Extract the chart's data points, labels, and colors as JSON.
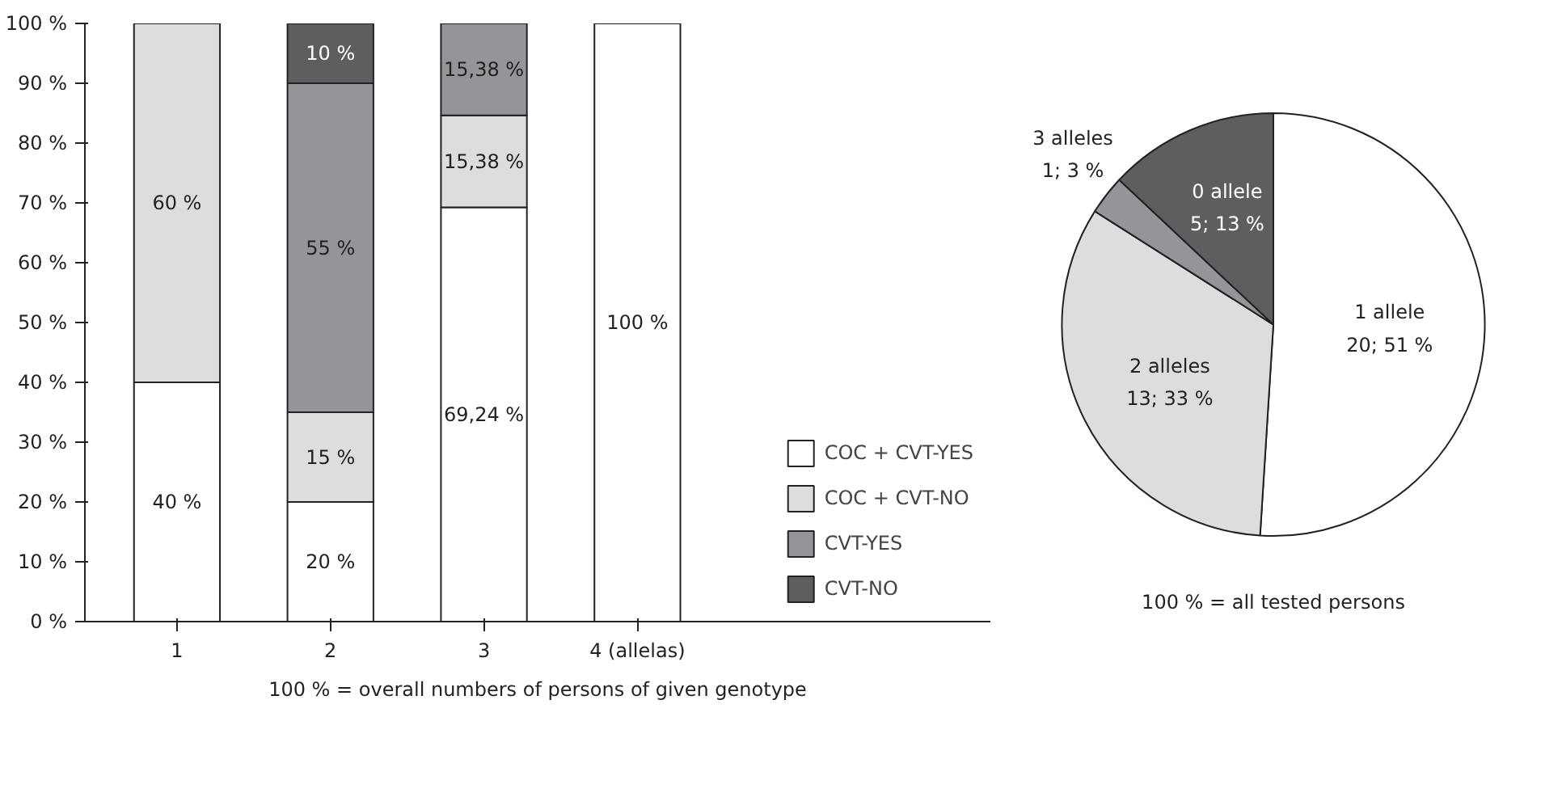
{
  "chart_data": [
    {
      "type": "bar",
      "stacked": true,
      "categories": [
        "1",
        "2",
        "3",
        "4 (allelas)"
      ],
      "series": [
        {
          "name": "COC + CVT-YES",
          "color": "#ffffff",
          "values": [
            40,
            20,
            69.24,
            100
          ],
          "value_labels": [
            "40 %",
            "20 %",
            "69,24 %",
            "100 %"
          ]
        },
        {
          "name": "COC + CVT-NO",
          "color": "#dcdddf",
          "values": [
            60,
            15,
            15.38,
            null
          ],
          "value_labels": [
            "60 %",
            "15 %",
            "15,38 %",
            null
          ]
        },
        {
          "name": "CVT-YES",
          "color": "#939598",
          "values": [
            null,
            55,
            15.38,
            null
          ],
          "value_labels": [
            null,
            "55 %",
            "15,38 %",
            null
          ]
        },
        {
          "name": "CVT-NO",
          "color": "#5d5e60",
          "values": [
            null,
            10,
            null,
            null
          ],
          "value_labels": [
            null,
            "10 %",
            null,
            null
          ]
        }
      ],
      "ylim": [
        0,
        100
      ],
      "yticks": [
        {
          "value": 0,
          "label": "0 %"
        },
        {
          "value": 10,
          "label": "10 %"
        },
        {
          "value": 20,
          "label": "20 %"
        },
        {
          "value": 30,
          "label": "30 %"
        },
        {
          "value": 40,
          "label": "40 %"
        },
        {
          "value": 50,
          "label": "50 %"
        },
        {
          "value": 60,
          "label": "60 %"
        },
        {
          "value": 70,
          "label": "70 %"
        },
        {
          "value": 80,
          "label": "80 %"
        },
        {
          "value": 90,
          "label": "90 %"
        },
        {
          "value": 100,
          "label": "100 %"
        }
      ],
      "grid": false,
      "legend": "bottom right",
      "annotations": [
        "100 % = overall numbers of persons of given genotype"
      ]
    },
    {
      "type": "pie",
      "categories": [
        "1 allele",
        "2 alleles",
        "3 alleles",
        "0 allele"
      ],
      "values": [
        51,
        33,
        3,
        13
      ],
      "colors": [
        "#ffffff",
        "#dcdddf",
        "#939598",
        "#5d5e60"
      ],
      "value_labels": [
        "20; 51 %",
        "13; 33 %",
        "1; 3 %",
        "5; 13 %"
      ],
      "annotations": [
        "100 % = all tested persons"
      ]
    }
  ]
}
